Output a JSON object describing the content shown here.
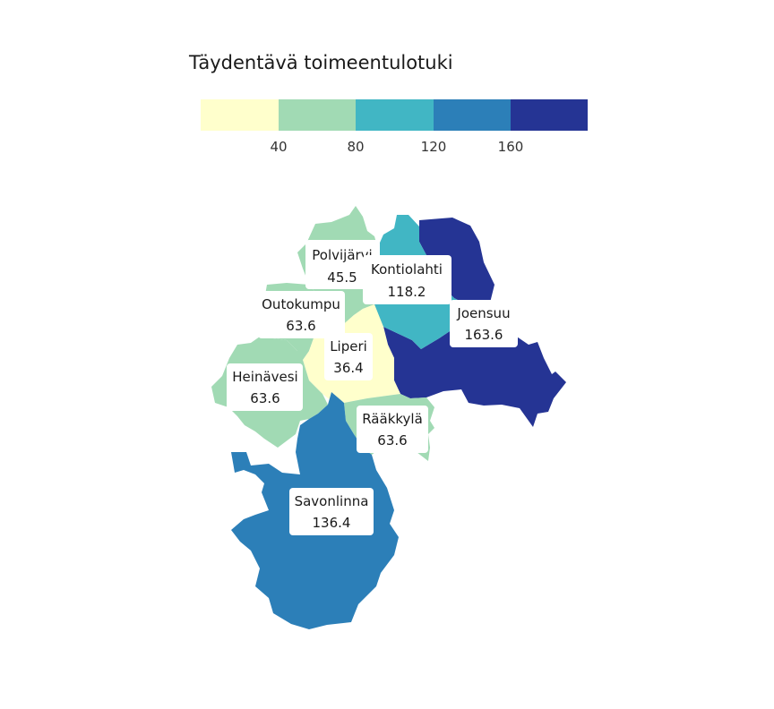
{
  "title": "Täydentävä toimeentulotuki",
  "legend": {
    "colors": [
      "#ffffcc",
      "#a1dab4",
      "#41b6c4",
      "#2c7fb8",
      "#253494"
    ],
    "ticks": [
      "40",
      "80",
      "120",
      "160"
    ]
  },
  "regions": [
    {
      "name": "Polvijärvi",
      "value": "45.5",
      "color": "#a1dab4"
    },
    {
      "name": "Kontiolahti",
      "value": "118.2",
      "color": "#41b6c4"
    },
    {
      "name": "Outokumpu",
      "value": "63.6",
      "color": "#a1dab4"
    },
    {
      "name": "Joensuu",
      "value": "163.6",
      "color": "#253494"
    },
    {
      "name": "Liperi",
      "value": "36.4",
      "color": "#ffffcc"
    },
    {
      "name": "Heinävesi",
      "value": "63.6",
      "color": "#a1dab4"
    },
    {
      "name": "Rääkkylä",
      "value": "63.6",
      "color": "#a1dab4"
    },
    {
      "name": "Savonlinna",
      "value": "136.4",
      "color": "#2c7fb8"
    }
  ]
}
